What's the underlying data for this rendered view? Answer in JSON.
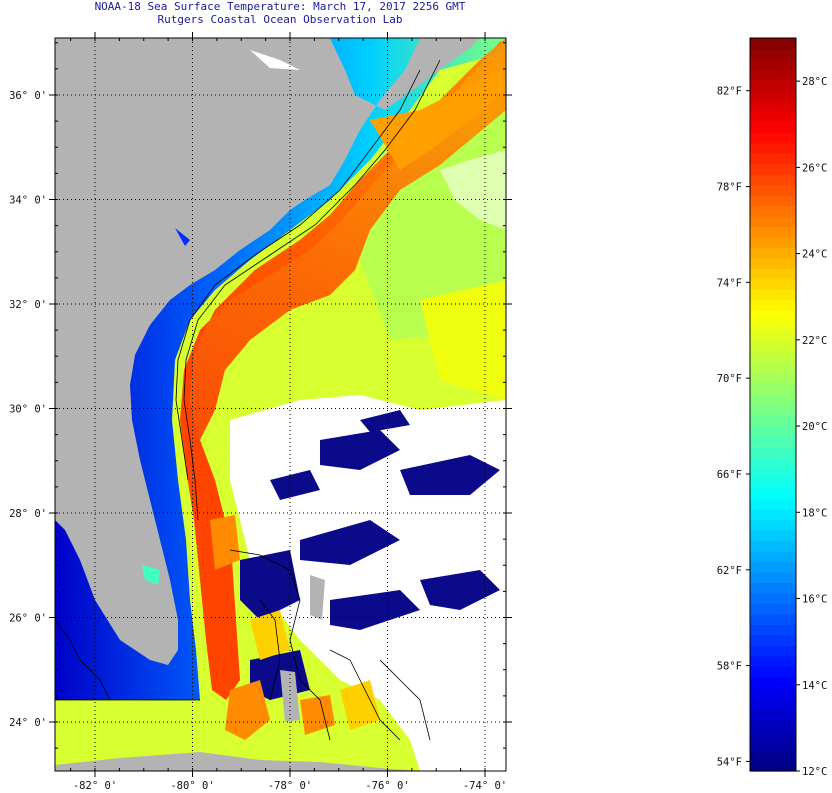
{
  "header": {
    "title": "NOAA-18 Sea Surface Temperature:  March 17, 2017 2256 GMT",
    "subtitle": "Rutgers Coastal Ocean Observation Lab"
  },
  "map": {
    "lat_ticks": [
      {
        "value": 24,
        "label": "24° 0'"
      },
      {
        "value": 26,
        "label": "26° 0'"
      },
      {
        "value": 28,
        "label": "28° 0'"
      },
      {
        "value": 30,
        "label": "30° 0'"
      },
      {
        "value": 32,
        "label": "32° 0'"
      },
      {
        "value": 34,
        "label": "34° 0'"
      },
      {
        "value": 36,
        "label": "36° 0'"
      }
    ],
    "lon_ticks": [
      {
        "value": -82,
        "label": "-82° 0'"
      },
      {
        "value": -80,
        "label": "-80° 0'"
      },
      {
        "value": -78,
        "label": "-78° 0'"
      },
      {
        "value": -76,
        "label": "-76° 0'"
      },
      {
        "value": -74,
        "label": "-74° 0'"
      }
    ],
    "land_color": "#b3b3b3",
    "cloud_color": "#ffffff"
  },
  "colorbar": {
    "fahrenheit": [
      {
        "value": 82,
        "label": "82°F"
      },
      {
        "value": 78,
        "label": "78°F"
      },
      {
        "value": 74,
        "label": "74°F"
      },
      {
        "value": 70,
        "label": "70°F"
      },
      {
        "value": 66,
        "label": "66°F"
      },
      {
        "value": 62,
        "label": "62°F"
      },
      {
        "value": 58,
        "label": "58°F"
      },
      {
        "value": 54,
        "label": "54°F"
      }
    ],
    "celsius": [
      {
        "value": 28,
        "label": "28°C"
      },
      {
        "value": 26,
        "label": "26°C"
      },
      {
        "value": 24,
        "label": "24°C"
      },
      {
        "value": 22,
        "label": "22°C"
      },
      {
        "value": 20,
        "label": "20°C"
      },
      {
        "value": 18,
        "label": "18°C"
      },
      {
        "value": 16,
        "label": "16°C"
      },
      {
        "value": 14,
        "label": "14°C"
      },
      {
        "value": 12,
        "label": "12°C"
      }
    ],
    "min_c": 12,
    "max_c": 29,
    "colors": [
      "#00007f",
      "#0000ff",
      "#0080ff",
      "#00ffff",
      "#80ff80",
      "#ffff00",
      "#ff8000",
      "#ff0000",
      "#7f0000"
    ]
  }
}
